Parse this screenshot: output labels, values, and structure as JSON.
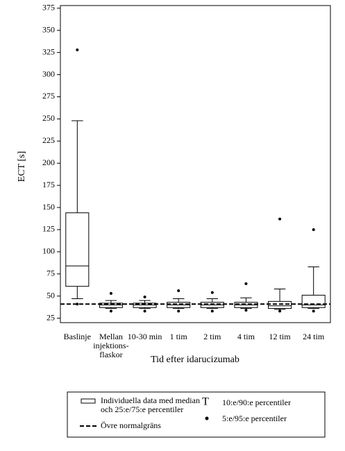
{
  "chart_data": {
    "type": "box",
    "xlabel": "Tid efter idarucizumab",
    "ylabel": "ECT [s]",
    "categories": [
      "Baslinje",
      "Mellan\ninjektions-\nflaskor",
      "10-30 min",
      "1 tim",
      "2 tim",
      "4 tim",
      "12 tim",
      "24 tim"
    ],
    "whisker_low": [
      47,
      36,
      36,
      36,
      36,
      36,
      35,
      36
    ],
    "q1": [
      61,
      37,
      37,
      37,
      37,
      37,
      36,
      37
    ],
    "median": [
      84,
      40,
      40,
      40,
      40,
      40,
      39,
      40
    ],
    "q3": [
      144,
      42,
      42,
      43,
      43,
      43,
      44,
      51
    ],
    "whisker_high": [
      248,
      45,
      45,
      47,
      47,
      48,
      58,
      83
    ],
    "p5": [
      41,
      33,
      33,
      33,
      33,
      34,
      33,
      33
    ],
    "p95": [
      328,
      53,
      49,
      56,
      54,
      64,
      137,
      125
    ],
    "reference_line": 41,
    "ylim": [
      20,
      378
    ],
    "yticks": [
      25,
      50,
      75,
      100,
      125,
      150,
      175,
      200,
      225,
      250,
      275,
      300,
      325,
      350,
      375
    ],
    "legend": {
      "box": "Individuella data med median\noch 25:e/75:e percentiler",
      "whisker": "10:e/90:e percentiler",
      "reference": "Övre normalgräns",
      "outlier": "5:e/95:e percentiler"
    }
  }
}
